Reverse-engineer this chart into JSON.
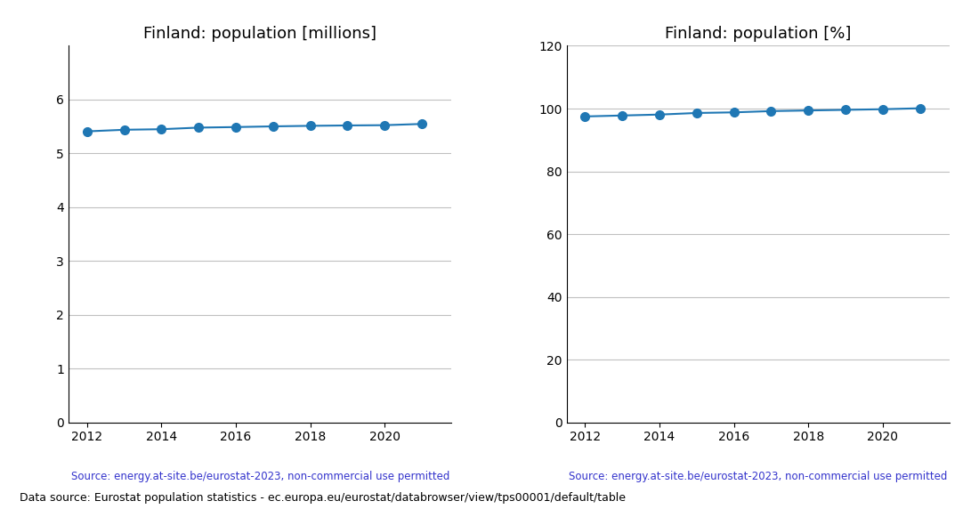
{
  "years": [
    2012,
    2013,
    2014,
    2015,
    2016,
    2017,
    2018,
    2019,
    2020,
    2021
  ],
  "millions": [
    5.41,
    5.44,
    5.45,
    5.48,
    5.49,
    5.503,
    5.513,
    5.52,
    5.525,
    5.548
  ],
  "percent": [
    97.5,
    97.8,
    98.1,
    98.6,
    98.8,
    99.2,
    99.4,
    99.6,
    99.8,
    100.1
  ],
  "title_millions": "Finland: population [millions]",
  "title_percent": "Finland: population [%]",
  "source_text": "Source: energy.at-site.be/eurostat-2023, non-commercial use permitted",
  "footer_text": "Data source: Eurostat population statistics - ec.europa.eu/eurostat/databrowser/view/tps00001/default/table",
  "line_color": "#1f77b4",
  "source_color": "#3333cc",
  "ylim_millions": [
    0,
    7
  ],
  "ylim_percent": [
    0,
    120
  ],
  "yticks_millions": [
    0,
    1,
    2,
    3,
    4,
    5,
    6
  ],
  "yticks_percent": [
    0,
    20,
    40,
    60,
    80,
    100,
    120
  ],
  "xticks": [
    2012,
    2014,
    2016,
    2018,
    2020
  ],
  "marker": "o",
  "markersize": 7,
  "linewidth": 1.5,
  "grid_color": "#c0c0c0"
}
